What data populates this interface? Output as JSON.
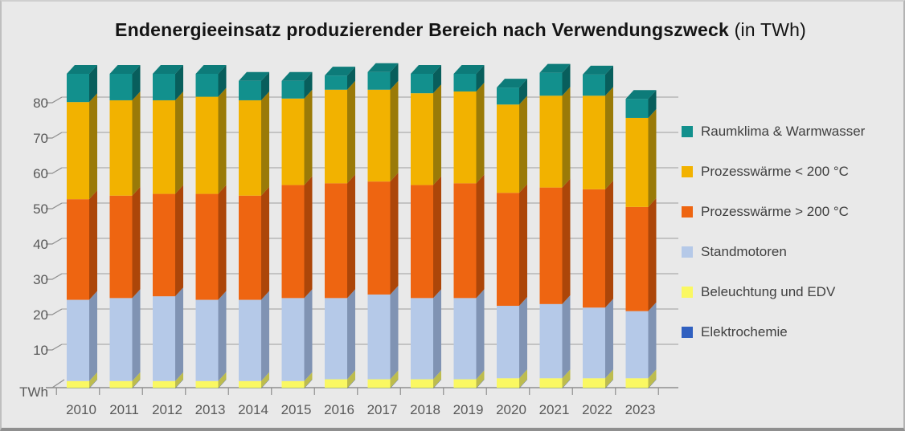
{
  "title": {
    "main": "Endenergieeinsatz produzierender Bereich nach Verwendungszweck",
    "suffix": " (in TWh)"
  },
  "y_axis": {
    "unit_label": "TWh",
    "tick_values": [
      10,
      20,
      30,
      40,
      50,
      60,
      70,
      80
    ]
  },
  "colors": {
    "background": "#E9E9E9",
    "gridline": "#ADADAD",
    "axis": "#8F8F8F",
    "tick_text": "#595959",
    "legend_text": "#3F3F3F",
    "title_text": "#141414"
  },
  "chart_data": {
    "type": "bar",
    "variant": "3d-stacked-column",
    "title": "Endenergieeinsatz produzierender Bereich nach Verwendungszweck (in TWh)",
    "xlabel": "",
    "ylabel": "TWh",
    "ylim": [
      0,
      90
    ],
    "grid": true,
    "legend_position": "right",
    "categories": [
      "2010",
      "2011",
      "2012",
      "2013",
      "2014",
      "2015",
      "2016",
      "2017",
      "2018",
      "2019",
      "2020",
      "2021",
      "2022",
      "2023"
    ],
    "series": [
      {
        "name": "Elektrochemie",
        "color": "#3060C0",
        "side_color": "#1F4390",
        "values": [
          0.1,
          0.1,
          0.1,
          0.1,
          0.1,
          0.1,
          0.1,
          0.1,
          0.1,
          0.1,
          0.1,
          0.1,
          0.1,
          0.1
        ]
      },
      {
        "name": "Beleuchtung und EDV",
        "color": "#FAF862",
        "side_color": "#BDBC4E",
        "values": [
          2,
          2,
          2,
          2,
          2,
          2,
          2.5,
          2.5,
          2.5,
          2.5,
          2.8,
          2.8,
          2.8,
          2.8
        ]
      },
      {
        "name": "Standmotoren",
        "color": "#B5C9E8",
        "side_color": "#8093B3",
        "values": [
          23,
          23.5,
          24,
          23,
          23,
          23.5,
          23,
          24,
          23,
          23,
          20.5,
          21,
          20,
          19
        ]
      },
      {
        "name": "Prozesswärme > 200 °C",
        "color": "#EE6511",
        "side_color": "#AC4609",
        "values": [
          28.5,
          29,
          29,
          30,
          29.5,
          32,
          32.5,
          32,
          32,
          32.5,
          32,
          33,
          33.5,
          29.5
        ]
      },
      {
        "name": "Prozesswärme < 200 °C",
        "color": "#F2B200",
        "side_color": "#9A7A08",
        "values": [
          27.5,
          27,
          26.5,
          27.5,
          27,
          24.5,
          26.5,
          26,
          26,
          26,
          25,
          26,
          26.5,
          25.2
        ]
      },
      {
        "name": "Raumklima & Warmwasser",
        "color": "#12908D",
        "side_color": "#085E5C",
        "top_color": "#0D7B79",
        "values": [
          8,
          7.5,
          7.5,
          6.5,
          5.5,
          5,
          4,
          5,
          5.5,
          5,
          4.8,
          6.5,
          6,
          5.4
        ]
      }
    ]
  }
}
